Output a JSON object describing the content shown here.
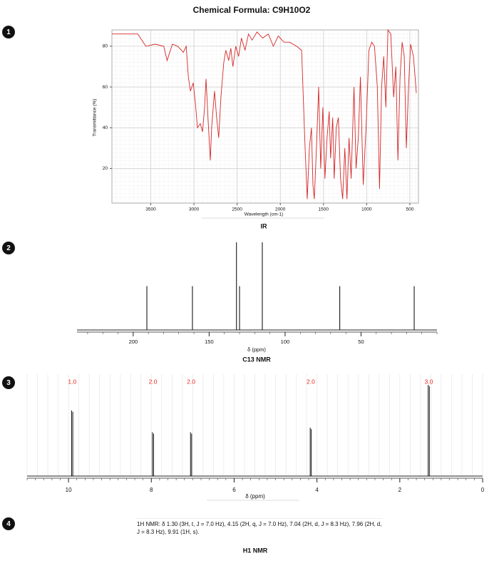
{
  "title": "Chemical Formula: C9H10O2",
  "badges": [
    "1",
    "2",
    "3",
    "4"
  ],
  "chart_data": [
    {
      "type": "line",
      "caption": "IR",
      "x_label": "Wavelength (cm-1)",
      "y_label": "Transmittance (%)",
      "xlim": [
        3950,
        400
      ],
      "ylim": [
        3,
        88
      ],
      "xticks": [
        3500,
        3000,
        2500,
        2000,
        1500,
        1000,
        500
      ],
      "yticks": [
        20,
        40,
        60,
        80
      ],
      "grid": true,
      "series": [
        {
          "color": "#d62728",
          "x": [
            3950,
            3800,
            3650,
            3557,
            3450,
            3350,
            3311,
            3250,
            3188,
            3123,
            3090,
            3065,
            3041,
            3008,
            2983,
            2959,
            2926,
            2901,
            2877,
            2860,
            2836,
            2811,
            2795,
            2762,
            2737,
            2713,
            2688,
            2655,
            2631,
            2598,
            2573,
            2549,
            2516,
            2483,
            2450,
            2409,
            2368,
            2327,
            2270,
            2204,
            2139,
            2081,
            2024,
            1958,
            1893,
            1811,
            1753,
            1713,
            1688,
            1663,
            1639,
            1622,
            1606,
            1581,
            1556,
            1532,
            1507,
            1483,
            1458,
            1434,
            1417,
            1393,
            1376,
            1352,
            1327,
            1302,
            1278,
            1253,
            1228,
            1204,
            1179,
            1146,
            1122,
            1097,
            1072,
            1040,
            1007,
            974,
            941,
            909,
            876,
            851,
            827,
            802,
            777,
            753,
            720,
            687,
            662,
            638,
            613,
            589,
            564,
            540,
            515,
            491,
            458,
            425
          ],
          "values": [
            86,
            86,
            86,
            80,
            81,
            80,
            73,
            81,
            80,
            77,
            80,
            65,
            58,
            62,
            52,
            40,
            42,
            38,
            50,
            64,
            44,
            24,
            40,
            58,
            45,
            35,
            55,
            72,
            78,
            73,
            79,
            70,
            80,
            75,
            84,
            78,
            86,
            83,
            87,
            84,
            86,
            80,
            85,
            82,
            82,
            80,
            78,
            30,
            5,
            30,
            40,
            12,
            5,
            30,
            60,
            20,
            50,
            15,
            35,
            48,
            25,
            45,
            15,
            40,
            45,
            15,
            5,
            30,
            5,
            35,
            15,
            60,
            20,
            35,
            65,
            12,
            40,
            78,
            82,
            80,
            60,
            10,
            60,
            75,
            50,
            88,
            86,
            55,
            70,
            24,
            65,
            82,
            75,
            30,
            60,
            81,
            75,
            57
          ]
        }
      ]
    },
    {
      "type": "stick",
      "caption": "C13 NMR",
      "x_label": "δ (ppm)",
      "xlim": [
        237,
        0
      ],
      "ylim": [
        0,
        1
      ],
      "xticks": [
        200,
        150,
        100,
        50
      ],
      "color": "#000000",
      "x": [
        191,
        161,
        132,
        130,
        115,
        64,
        15
      ],
      "values": [
        0.5,
        0.5,
        1,
        0.5,
        1,
        0.5,
        0.5
      ]
    },
    {
      "type": "nmr",
      "caption": "H1 NMR",
      "x_label": "δ (ppm)",
      "xlim": [
        11,
        0
      ],
      "ylim": [
        0,
        1
      ],
      "xticks": [
        10,
        8,
        6,
        4,
        2,
        0
      ],
      "color": "#000000",
      "label_color": "#e8281e",
      "x": [
        9.91,
        7.96,
        7.04,
        4.15,
        1.3
      ],
      "values": [
        0.72,
        0.48,
        0.48,
        0.53,
        1
      ],
      "integrals": [
        1,
        2,
        2,
        2,
        3
      ],
      "integral_labels": [
        "1.0",
        "2.0",
        "2.0",
        "2.0",
        "3.0"
      ],
      "note": "1H NMR: δ 1.30 (3H, t, J = 7.0 Hz), 4.15 (2H, q, J = 7.0 Hz), 7.04 (2H, d, J = 8.3 Hz), 7.96 (2H, d, J = 8.3 Hz), 9.91 (1H, s)."
    }
  ]
}
